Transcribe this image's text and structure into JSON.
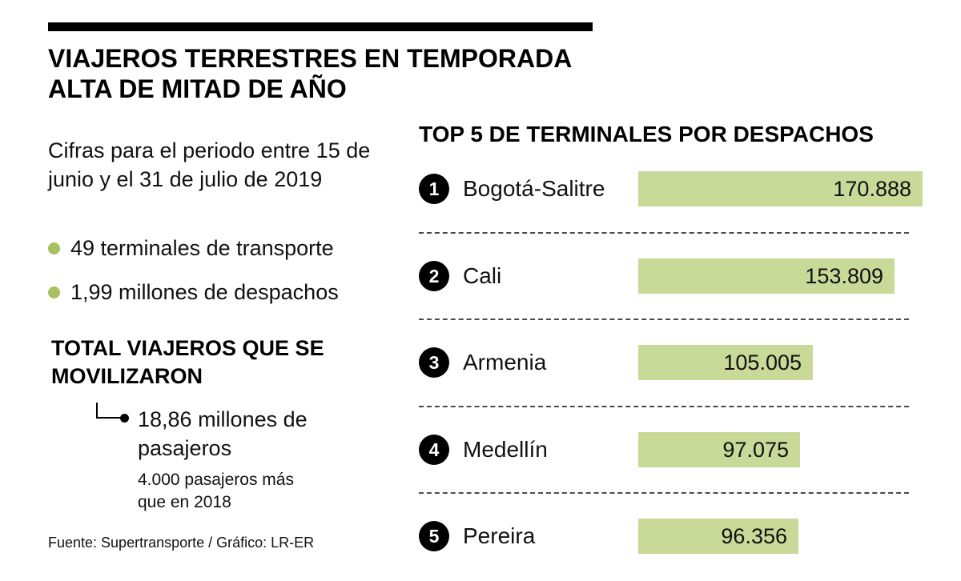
{
  "colors": {
    "bar_green": "#c9d998",
    "bullet_green": "#a7c15f",
    "black": "#000000"
  },
  "header": {
    "title_line1": "VIAJEROS TERRESTRES EN TEMPORADA",
    "title_line2": "ALTA DE MITAD DE AÑO"
  },
  "left": {
    "period": "Cifras para el periodo entre 15 de junio y el 31 de julio de 2019",
    "bullets": [
      "49 terminales de transporte",
      "1,99 millones de despachos"
    ],
    "total_heading": "TOTAL VIAJEROS QUE SE MOVILIZARON",
    "total_value": "18,86 millones de pasajeros",
    "total_note": "4.000 pasajeros más que en 2018",
    "source": "Fuente: Supertransporte / Gráfico: LR-ER"
  },
  "chart_data": {
    "type": "bar",
    "orientation": "horizontal",
    "title": "TOP 5 DE TERMINALES POR DESPACHOS",
    "categories": [
      "Bogotá-Salitre",
      "Cali",
      "Armenia",
      "Medellín",
      "Pereira"
    ],
    "ranks": [
      "1",
      "2",
      "3",
      "4",
      "5"
    ],
    "values": [
      170888,
      153809,
      105005,
      97075,
      96356
    ],
    "value_labels": [
      "170.888",
      "153.809",
      "105.005",
      "97.075",
      "96.356"
    ],
    "xlim": [
      0,
      170888
    ],
    "bar_color": "#c9d998",
    "grid": false,
    "legend": "none"
  }
}
